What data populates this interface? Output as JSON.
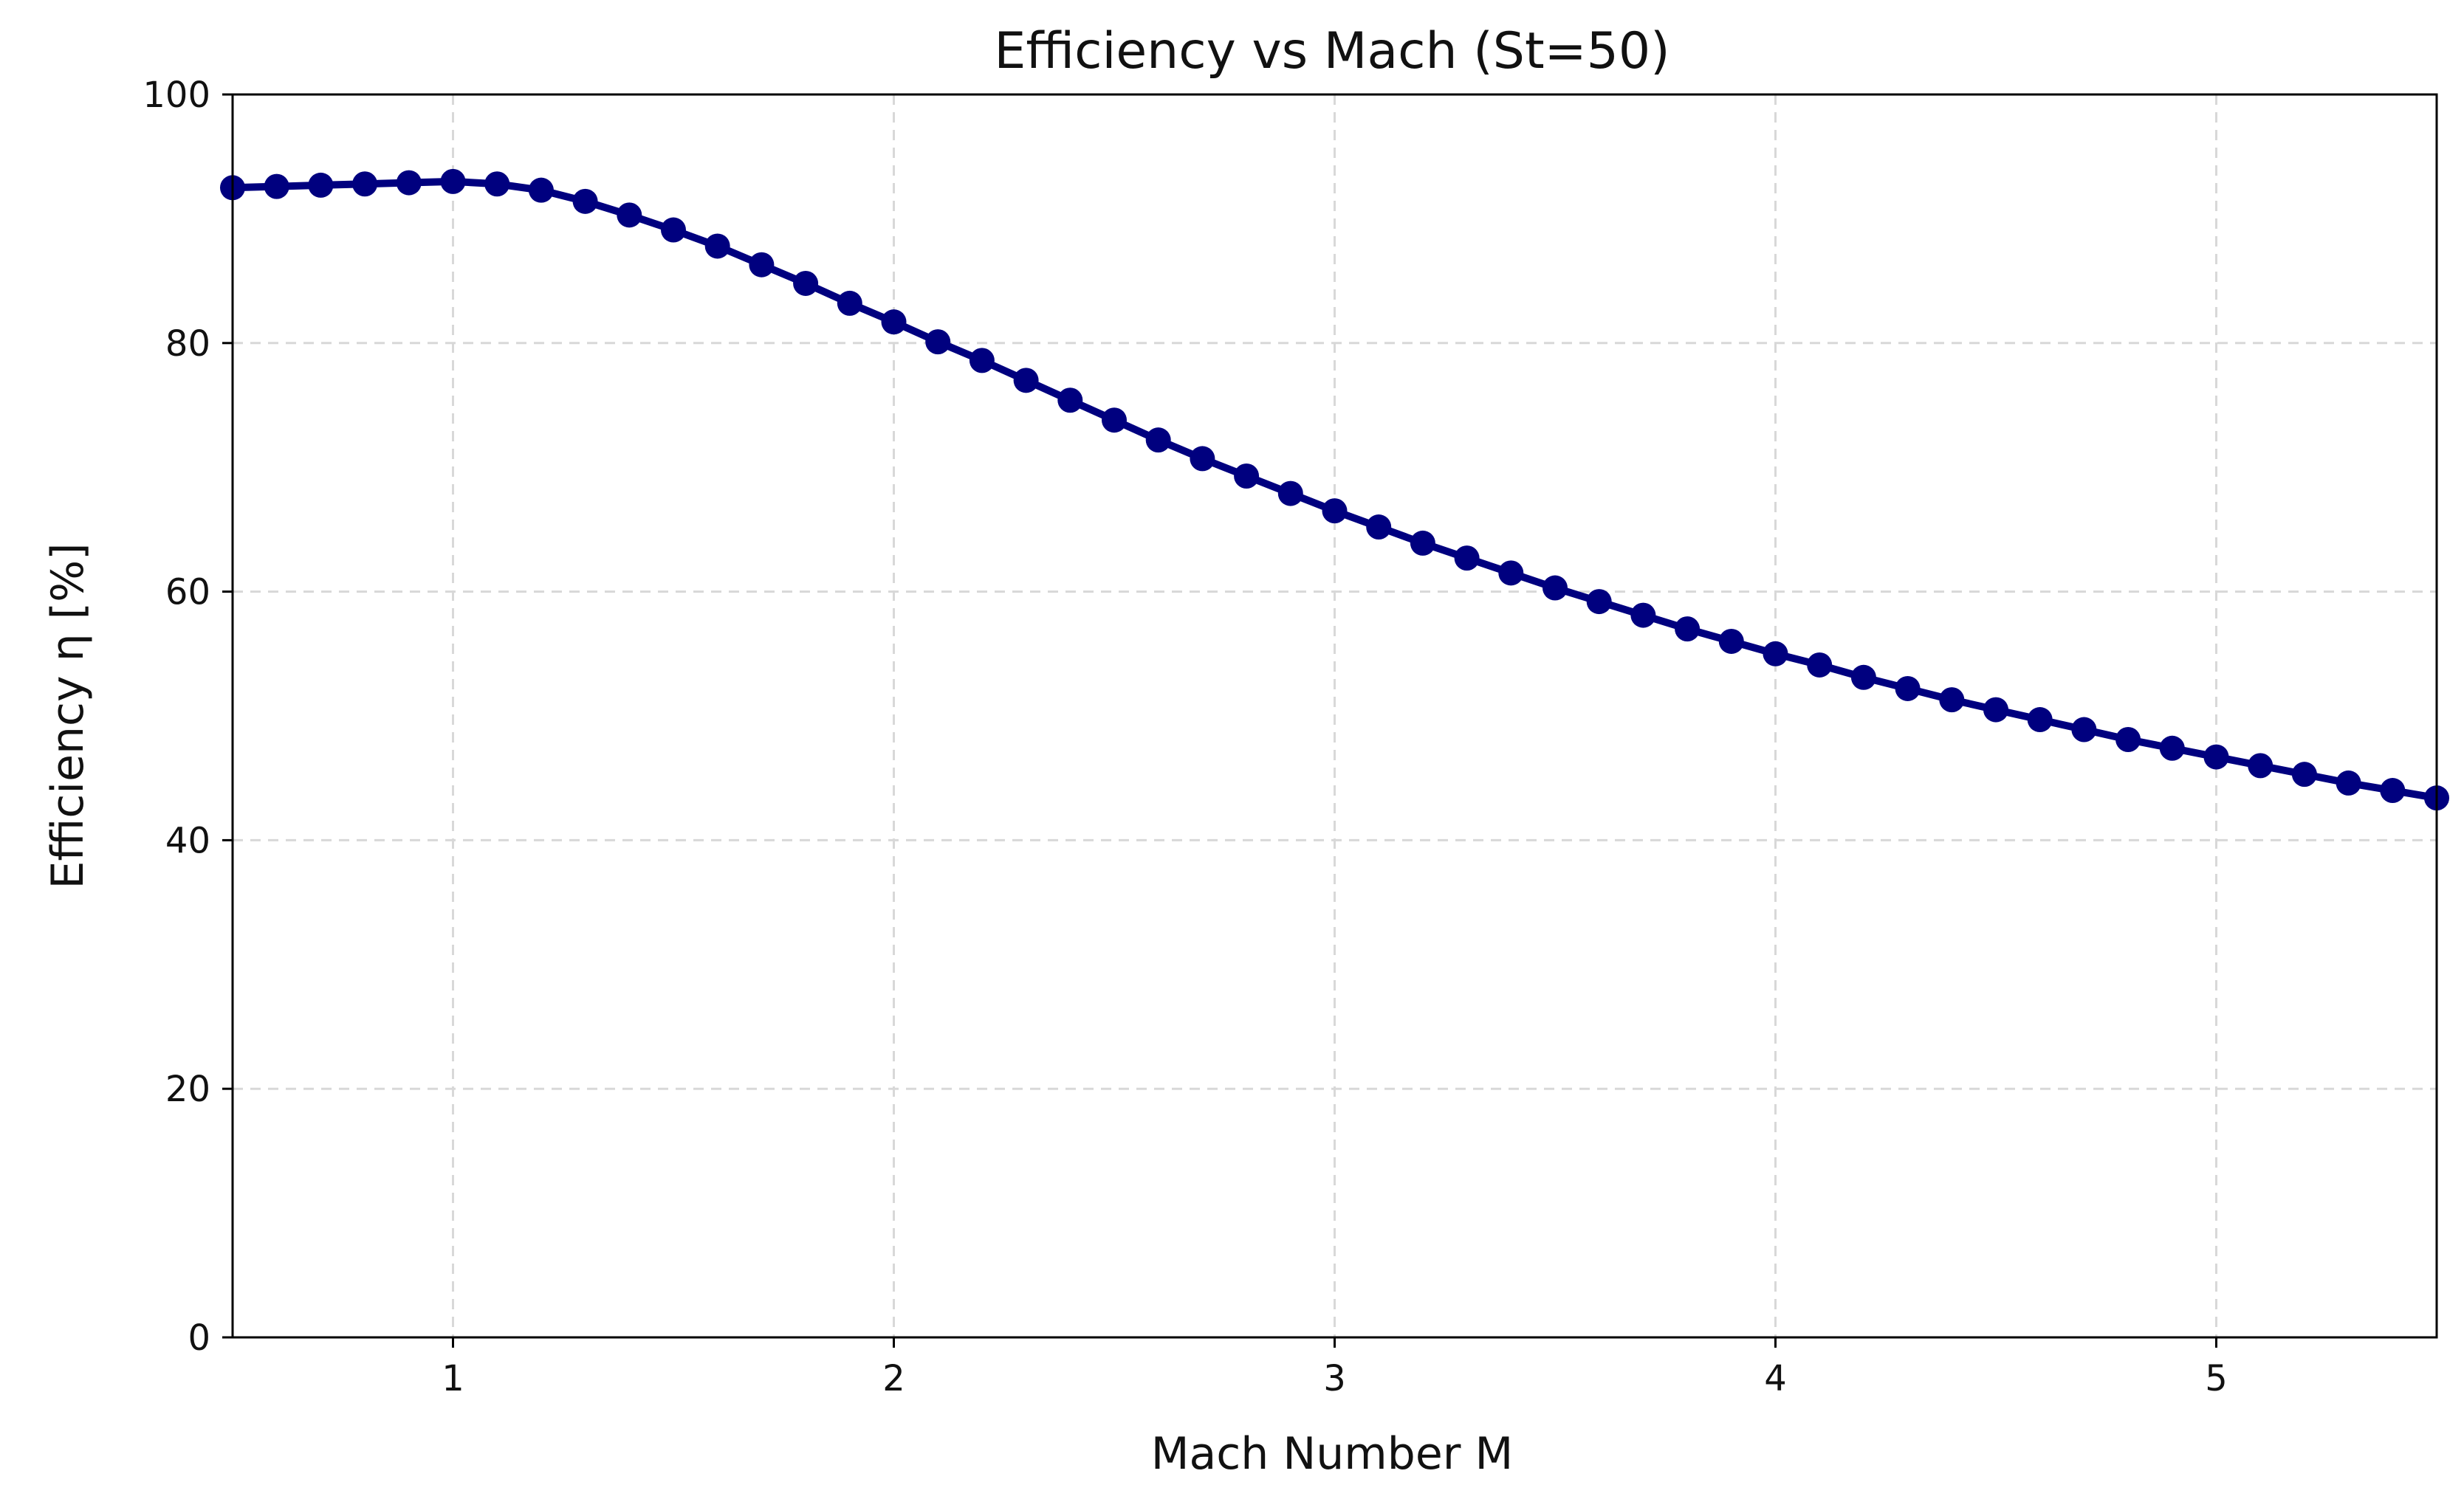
{
  "chart_data": {
    "type": "line",
    "title": "Efficiency vs Mach (St=50)",
    "xlabel": "Mach Number M",
    "ylabel": "Efficiency η [%]",
    "xlim": [
      0.5,
      5.5
    ],
    "ylim": [
      0,
      100
    ],
    "x_ticks": [
      1,
      2,
      3,
      4,
      5
    ],
    "y_ticks": [
      0,
      20,
      40,
      60,
      80,
      100
    ],
    "grid": true,
    "legend": "none",
    "colors": {
      "series": "#00007f",
      "grid": "#d8d8d8",
      "axis": "#000000"
    },
    "series": [
      {
        "x": [
          0.5,
          0.6,
          0.7,
          0.8,
          0.9,
          1.0,
          1.1,
          1.2,
          1.3,
          1.4,
          1.5,
          1.6,
          1.7,
          1.8,
          1.9,
          2.0,
          2.1,
          2.2,
          2.3,
          2.4,
          2.5,
          2.6,
          2.7,
          2.8,
          2.9,
          3.0,
          3.1,
          3.2,
          3.3,
          3.4,
          3.5,
          3.6,
          3.7,
          3.8,
          3.9,
          4.0,
          4.1,
          4.2,
          4.3,
          4.4,
          4.5,
          4.6,
          4.7,
          4.8,
          4.9,
          5.0,
          5.1,
          5.2,
          5.3,
          5.4,
          5.5
        ],
        "values": [
          92.5,
          92.6,
          92.7,
          92.8,
          92.9,
          93.0,
          92.8,
          92.3,
          91.4,
          90.3,
          89.1,
          87.8,
          86.3,
          84.8,
          83.2,
          81.7,
          80.1,
          78.6,
          77.0,
          75.4,
          73.8,
          72.2,
          70.7,
          69.3,
          67.9,
          66.5,
          65.2,
          63.9,
          62.7,
          61.5,
          60.3,
          59.2,
          58.1,
          57.0,
          56.0,
          55.0,
          54.1,
          53.1,
          52.2,
          51.3,
          50.5,
          49.7,
          48.9,
          48.1,
          47.4,
          46.7,
          46.0,
          45.3,
          44.6,
          44.0,
          43.4
        ],
        "color": "#00007f"
      }
    ]
  }
}
